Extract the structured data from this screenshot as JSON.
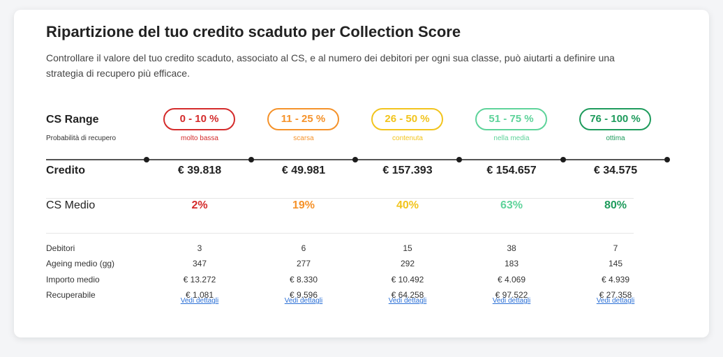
{
  "header": {
    "title": "Ripartizione del tuo credito scaduto per Collection Score",
    "description": "Controllare il valore del tuo credito scaduto, associato al CS, e al numero dei debitori per ogni sua classe, può aiutarti a definire una strategia di recupero più efficace."
  },
  "labels": {
    "cs_range": "CS Range",
    "probability": "Probabilità di recupero",
    "credito": "Credito",
    "cs_medio": "CS Medio",
    "debitori": "Debitori",
    "ageing": "Ageing medio (gg)",
    "importo": "Importo medio",
    "recuperabile": "Recuperabile"
  },
  "columns": [
    {
      "range": "0 - 10 %",
      "prob": "molto bassa",
      "color": "#d42b2b",
      "credito": "€ 39.818",
      "cs": "2%",
      "debitori": "3",
      "ageing": "347",
      "importo": "€ 13.272",
      "recuperabile": "€ 1.081",
      "link": "Vedi dettagli"
    },
    {
      "range": "11 - 25 %",
      "prob": "scarsa",
      "color": "#f5922a",
      "credito": "€ 49.981",
      "cs": "19%",
      "debitori": "6",
      "ageing": "277",
      "importo": "€ 8.330",
      "recuperabile": "€ 9.596",
      "link": "Vedi dettagli"
    },
    {
      "range": "26 - 50 %",
      "prob": "contenuta",
      "color": "#f2c41d",
      "credito": "€ 157.393",
      "cs": "40%",
      "debitori": "15",
      "ageing": "292",
      "importo": "€ 10.492",
      "recuperabile": "€ 64.258",
      "link": "Vedi dettagli"
    },
    {
      "range": "51 - 75 %",
      "prob": "nella media",
      "color": "#5ed39a",
      "credito": "€ 154.657",
      "cs": "63%",
      "debitori": "38",
      "ageing": "183",
      "importo": "€ 4.069",
      "recuperabile": "€ 97.522",
      "link": "Vedi dettagli"
    },
    {
      "range": "76 - 100 %",
      "prob": "ottima",
      "color": "#1e9b5c",
      "credito": "€ 34.575",
      "cs": "80%",
      "debitori": "7",
      "ageing": "145",
      "importo": "€ 4.939",
      "recuperabile": "€ 27.358",
      "link": "Vedi dettagli"
    }
  ]
}
